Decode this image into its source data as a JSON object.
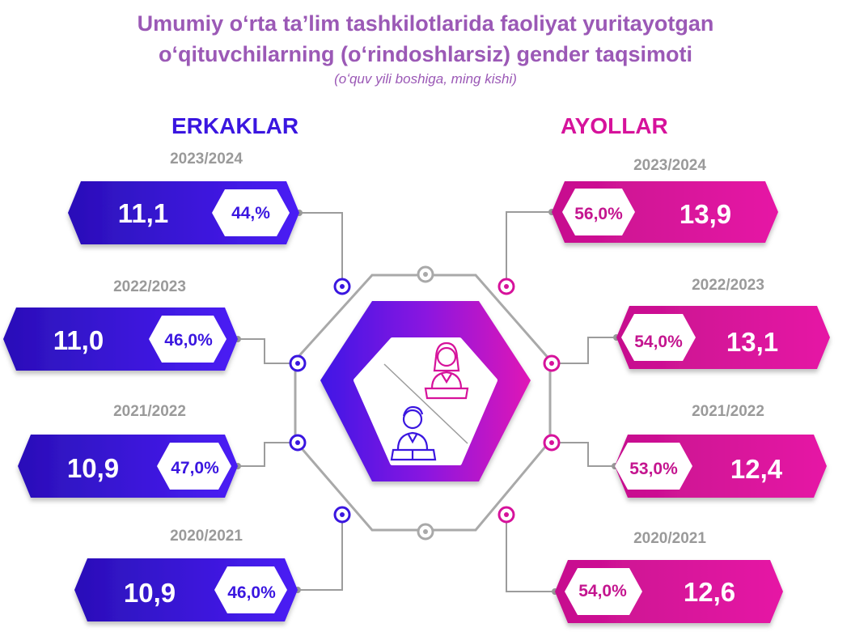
{
  "title_line1": "Umumiy oʻrta taʼlim tashkilotlarida faoliyat yuritayotgan",
  "title_line2": "oʻqituvchilarning (oʻrindoshlarsiz) gender taqsimoti",
  "subtitle": "(oʻquv yili boshiga, ming kishi)",
  "colors": {
    "male": "#3a16e0",
    "female": "#d6129b",
    "title": "#9b59b6"
  },
  "icons": {
    "center_female": "female-teacher-icon",
    "center_male": "male-teacher-icon"
  },
  "chart_data": {
    "type": "table",
    "title": "Umumiy oʻrta taʼlim tashkilotlarida faoliyat yuritayotgan oʻqituvchilarning (oʻrindoshlarsiz) gender taqsimoti",
    "unit": "(oʻquv yili boshiga, ming kishi)",
    "male_label": "ERKAKLAR",
    "female_label": "AYOLLAR",
    "male": [
      {
        "year": "2023/2024",
        "value": "11,1",
        "pct": "44,%"
      },
      {
        "year": "2022/2023",
        "value": "11,0",
        "pct": "46,0%"
      },
      {
        "year": "2021/2022",
        "value": "10,9",
        "pct": "47,0%"
      },
      {
        "year": "2020/2021",
        "value": "10,9",
        "pct": "46,0%"
      }
    ],
    "female": [
      {
        "year": "2023/2024",
        "value": "13,9",
        "pct": "56,0%"
      },
      {
        "year": "2022/2023",
        "value": "13,1",
        "pct": "54,0%"
      },
      {
        "year": "2021/2022",
        "value": "12,4",
        "pct": "53,0%"
      },
      {
        "year": "2020/2021",
        "value": "12,6",
        "pct": "54,0%"
      }
    ]
  }
}
